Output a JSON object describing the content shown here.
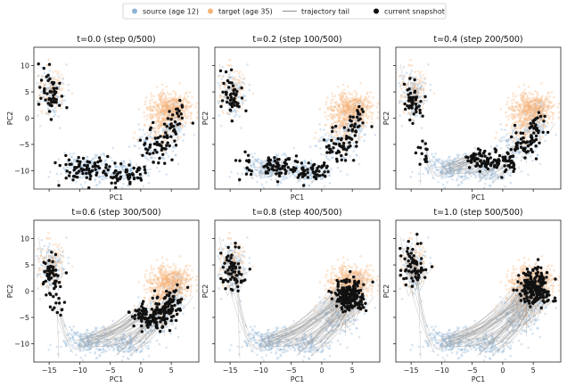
{
  "chart_data": {
    "type": "scatter",
    "legend": {
      "placement": "top-center",
      "entries": [
        {
          "label": "source (age 12)",
          "color": "#8fb4d6",
          "marker": "dot-faint"
        },
        {
          "label": "target (age 35)",
          "color": "#f7b47a",
          "marker": "dot-faint"
        },
        {
          "label": "trajectory tail",
          "color": "#9a9a9a",
          "marker": "line"
        },
        {
          "label": "current snapshot",
          "color": "#111111",
          "marker": "dot"
        }
      ]
    },
    "xlabel": "PC1",
    "ylabel": "PC2",
    "xlim": [
      -17.5,
      9.5
    ],
    "ylim": [
      -13.5,
      13.5
    ],
    "xticks": [
      -15,
      -10,
      -5,
      0,
      5
    ],
    "yticks": [
      10,
      5,
      0,
      -5,
      -10
    ],
    "grid": false,
    "colors": {
      "source": "#8fb4d6",
      "target": "#f7b47a",
      "trail": "#9a9a9a",
      "snapshot": "#111111"
    },
    "panels": [
      {
        "title": "t=0.0 (step 0/500)",
        "t": 0.0,
        "show_xticklabels": false,
        "show_yticklabels": true,
        "show_ylabel": true
      },
      {
        "title": "t=0.2 (step 100/500)",
        "t": 0.2,
        "show_xticklabels": false,
        "show_yticklabels": false,
        "show_ylabel": true
      },
      {
        "title": "t=0.4 (step 200/500)",
        "t": 0.4,
        "show_xticklabels": false,
        "show_yticklabels": false,
        "show_ylabel": true
      },
      {
        "title": "t=0.6 (step 300/500)",
        "t": 0.6,
        "show_xticklabels": true,
        "show_yticklabels": true,
        "show_ylabel": true
      },
      {
        "title": "t=0.8 (step 400/500)",
        "t": 0.8,
        "show_xticklabels": true,
        "show_yticklabels": false,
        "show_ylabel": true
      },
      {
        "title": "t=1.0 (step 500/500)",
        "t": 1.0,
        "show_xticklabels": true,
        "show_yticklabels": false,
        "show_ylabel": true
      }
    ],
    "clusters": {
      "source": [
        {
          "cx": -14.5,
          "cy": 4.5,
          "sx": 1.0,
          "sy": 2.0,
          "weight": 0.2
        },
        {
          "cx": -9.0,
          "cy": -9.5,
          "sx": 2.0,
          "sy": 1.3,
          "weight": 0.28
        },
        {
          "cx": -2.5,
          "cy": -10.5,
          "sx": 2.0,
          "sy": 1.1,
          "weight": 0.2
        },
        {
          "cx": 2.5,
          "cy": -5.5,
          "sx": 1.5,
          "sy": 2.0,
          "weight": 0.17
        },
        {
          "cx": 5.5,
          "cy": -1.0,
          "sx": 1.1,
          "sy": 2.0,
          "weight": 0.15
        }
      ],
      "target": [
        {
          "cx": -14.5,
          "cy": 5.5,
          "sx": 1.1,
          "sy": 2.2,
          "weight": 0.15
        },
        {
          "cx": 5.0,
          "cy": 2.0,
          "sx": 1.8,
          "sy": 1.5,
          "weight": 0.65
        },
        {
          "cx": 3.5,
          "cy": -1.5,
          "sx": 1.6,
          "sy": 2.0,
          "weight": 0.2
        }
      ]
    }
  }
}
